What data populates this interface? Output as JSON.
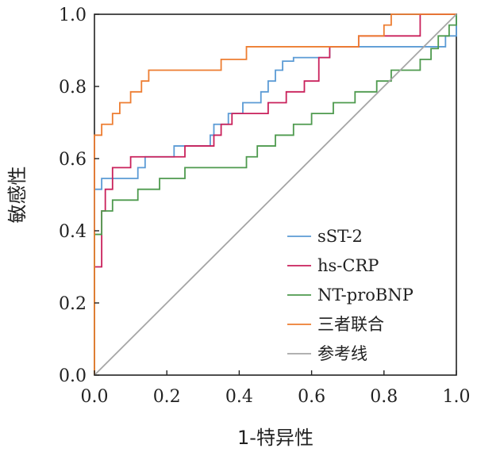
{
  "chart_data": {
    "type": "line",
    "xlabel": "1-特异性",
    "ylabel": "敏感性",
    "xlim": [
      0,
      1
    ],
    "ylim": [
      0,
      1
    ],
    "x_ticks": [
      0.0,
      0.2,
      0.4,
      0.6,
      0.8,
      1.0
    ],
    "y_ticks": [
      0.0,
      0.2,
      0.4,
      0.6,
      0.8,
      1.0
    ],
    "x_tick_labels": [
      "0.0",
      "0.2",
      "0.4",
      "0.6",
      "0.8",
      "1.0"
    ],
    "y_tick_labels": [
      "0.0",
      "0.2",
      "0.4",
      "0.6",
      "0.8",
      "1.0"
    ],
    "grid": false,
    "legend_position": "bottom-right",
    "series": [
      {
        "name": "sST-2",
        "color": "#5b9bd5",
        "points": [
          [
            0,
            0
          ],
          [
            0,
            0.515
          ],
          [
            0.02,
            0.515
          ],
          [
            0.02,
            0.545
          ],
          [
            0.12,
            0.545
          ],
          [
            0.12,
            0.575
          ],
          [
            0.14,
            0.575
          ],
          [
            0.14,
            0.605
          ],
          [
            0.22,
            0.605
          ],
          [
            0.22,
            0.635
          ],
          [
            0.32,
            0.635
          ],
          [
            0.32,
            0.665
          ],
          [
            0.33,
            0.665
          ],
          [
            0.33,
            0.695
          ],
          [
            0.37,
            0.695
          ],
          [
            0.37,
            0.725
          ],
          [
            0.41,
            0.725
          ],
          [
            0.41,
            0.755
          ],
          [
            0.46,
            0.755
          ],
          [
            0.46,
            0.785
          ],
          [
            0.48,
            0.785
          ],
          [
            0.48,
            0.815
          ],
          [
            0.5,
            0.815
          ],
          [
            0.5,
            0.845
          ],
          [
            0.52,
            0.845
          ],
          [
            0.52,
            0.87
          ],
          [
            0.55,
            0.87
          ],
          [
            0.55,
            0.88
          ],
          [
            0.65,
            0.88
          ],
          [
            0.65,
            0.91
          ],
          [
            0.97,
            0.91
          ],
          [
            0.97,
            0.94
          ],
          [
            1,
            0.94
          ],
          [
            1,
            1
          ]
        ]
      },
      {
        "name": "hs-CRP",
        "color": "#c9215b",
        "points": [
          [
            0,
            0
          ],
          [
            0,
            0.3
          ],
          [
            0.02,
            0.3
          ],
          [
            0.02,
            0.455
          ],
          [
            0.03,
            0.455
          ],
          [
            0.03,
            0.515
          ],
          [
            0.05,
            0.515
          ],
          [
            0.05,
            0.575
          ],
          [
            0.1,
            0.575
          ],
          [
            0.1,
            0.605
          ],
          [
            0.25,
            0.605
          ],
          [
            0.25,
            0.635
          ],
          [
            0.33,
            0.635
          ],
          [
            0.33,
            0.665
          ],
          [
            0.35,
            0.665
          ],
          [
            0.35,
            0.695
          ],
          [
            0.38,
            0.695
          ],
          [
            0.38,
            0.725
          ],
          [
            0.48,
            0.725
          ],
          [
            0.48,
            0.755
          ],
          [
            0.53,
            0.755
          ],
          [
            0.53,
            0.785
          ],
          [
            0.58,
            0.785
          ],
          [
            0.58,
            0.815
          ],
          [
            0.62,
            0.815
          ],
          [
            0.62,
            0.88
          ],
          [
            0.65,
            0.88
          ],
          [
            0.65,
            0.91
          ],
          [
            0.73,
            0.91
          ],
          [
            0.73,
            0.94
          ],
          [
            0.9,
            0.94
          ],
          [
            0.9,
            1
          ],
          [
            1,
            1
          ]
        ]
      },
      {
        "name": "NT-proBNP",
        "color": "#4e9a4e",
        "points": [
          [
            0,
            0
          ],
          [
            0,
            0.39
          ],
          [
            0.02,
            0.39
          ],
          [
            0.02,
            0.455
          ],
          [
            0.05,
            0.455
          ],
          [
            0.05,
            0.485
          ],
          [
            0.12,
            0.485
          ],
          [
            0.12,
            0.515
          ],
          [
            0.18,
            0.515
          ],
          [
            0.18,
            0.545
          ],
          [
            0.25,
            0.545
          ],
          [
            0.25,
            0.575
          ],
          [
            0.42,
            0.575
          ],
          [
            0.42,
            0.605
          ],
          [
            0.45,
            0.605
          ],
          [
            0.45,
            0.635
          ],
          [
            0.5,
            0.635
          ],
          [
            0.5,
            0.665
          ],
          [
            0.55,
            0.665
          ],
          [
            0.55,
            0.695
          ],
          [
            0.6,
            0.695
          ],
          [
            0.6,
            0.725
          ],
          [
            0.66,
            0.725
          ],
          [
            0.66,
            0.755
          ],
          [
            0.72,
            0.755
          ],
          [
            0.72,
            0.785
          ],
          [
            0.78,
            0.785
          ],
          [
            0.78,
            0.815
          ],
          [
            0.82,
            0.815
          ],
          [
            0.82,
            0.845
          ],
          [
            0.9,
            0.845
          ],
          [
            0.9,
            0.875
          ],
          [
            0.93,
            0.875
          ],
          [
            0.93,
            0.905
          ],
          [
            0.95,
            0.905
          ],
          [
            0.95,
            0.94
          ],
          [
            0.98,
            0.94
          ],
          [
            0.98,
            0.97
          ],
          [
            1,
            0.97
          ],
          [
            1,
            1
          ]
        ]
      },
      {
        "name": "三者联合",
        "color": "#ed7d31",
        "points": [
          [
            0,
            0
          ],
          [
            0,
            0.665
          ],
          [
            0.02,
            0.665
          ],
          [
            0.02,
            0.695
          ],
          [
            0.05,
            0.695
          ],
          [
            0.05,
            0.725
          ],
          [
            0.07,
            0.725
          ],
          [
            0.07,
            0.755
          ],
          [
            0.1,
            0.755
          ],
          [
            0.1,
            0.785
          ],
          [
            0.13,
            0.785
          ],
          [
            0.13,
            0.815
          ],
          [
            0.15,
            0.815
          ],
          [
            0.15,
            0.845
          ],
          [
            0.35,
            0.845
          ],
          [
            0.35,
            0.875
          ],
          [
            0.42,
            0.875
          ],
          [
            0.42,
            0.91
          ],
          [
            0.73,
            0.91
          ],
          [
            0.73,
            0.94
          ],
          [
            0.8,
            0.94
          ],
          [
            0.8,
            0.97
          ],
          [
            0.82,
            0.97
          ],
          [
            0.82,
            1
          ],
          [
            1,
            1
          ]
        ]
      },
      {
        "name": "参考线",
        "color": "#a6a6a6",
        "points": [
          [
            0,
            0
          ],
          [
            1,
            1
          ]
        ]
      }
    ]
  }
}
